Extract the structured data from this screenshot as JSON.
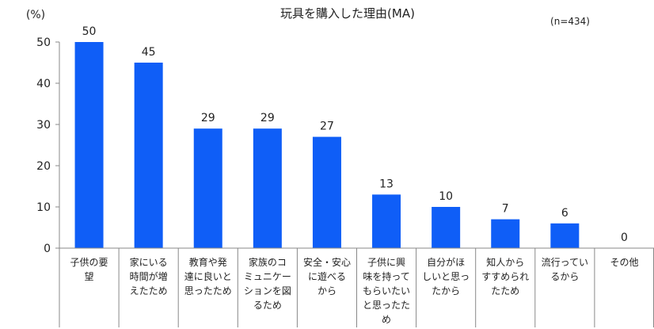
{
  "chart_data": {
    "type": "bar",
    "title": "玩具を購入した理由(MA)",
    "note": "(n=434)",
    "ylabel": "(%)",
    "ylim": [
      0,
      50
    ],
    "yticks": [
      0,
      10,
      20,
      30,
      40,
      50
    ],
    "grid": false,
    "color": "#0F5EF7",
    "categories": [
      [
        "子供の要",
        "望"
      ],
      [
        "家にいる",
        "時間が増",
        "えたため"
      ],
      [
        "教育や発",
        "達に良いと",
        "思ったため"
      ],
      [
        "家族のコ",
        "ミュニケー",
        "ションを図",
        "るため"
      ],
      [
        "安全・安心",
        "に遊べる",
        "から"
      ],
      [
        "子供に興",
        "味を持って",
        "もらいたい",
        "と思ったた",
        "め"
      ],
      [
        "自分がほ",
        "しいと思っ",
        "たから"
      ],
      [
        "知人から",
        "すすめられ",
        "たため"
      ],
      [
        "流行ってい",
        "るから"
      ],
      [
        "その他"
      ]
    ],
    "values": [
      50,
      45,
      29,
      29,
      27,
      13,
      10,
      7,
      6,
      0
    ]
  }
}
